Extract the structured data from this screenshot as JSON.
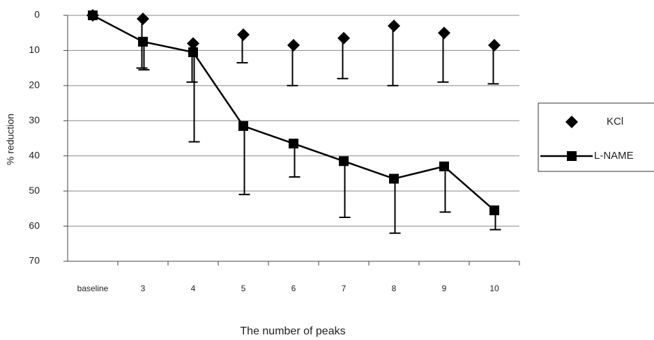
{
  "chart_data": {
    "type": "line",
    "x_label": "The number of peaks",
    "y_label": "% reduction",
    "categories": [
      "baseline",
      "3",
      "4",
      "5",
      "6",
      "7",
      "8",
      "9",
      "10"
    ],
    "series": [
      {
        "name": "KCl",
        "color": "#000000",
        "marker": "diamond",
        "line": false,
        "values": [
          0,
          1,
          8,
          5.5,
          8.5,
          6.5,
          3,
          5,
          8.5
        ],
        "errors": [
          null,
          14,
          11,
          8,
          11.5,
          11.5,
          17,
          14,
          11
        ]
      },
      {
        "name": "L-NAME",
        "color": "#000000",
        "marker": "square",
        "line": true,
        "values": [
          0,
          7.5,
          10.5,
          31.5,
          36.5,
          41.5,
          46.5,
          43,
          55.5
        ],
        "errors": [
          null,
          8,
          25.5,
          19.5,
          9.5,
          16,
          15.5,
          13,
          5.5
        ]
      }
    ],
    "ylim": [
      0,
      70
    ],
    "yticks": [
      0,
      10,
      20,
      30,
      40,
      50,
      60,
      70
    ],
    "y_inverted": true,
    "grid": true
  }
}
